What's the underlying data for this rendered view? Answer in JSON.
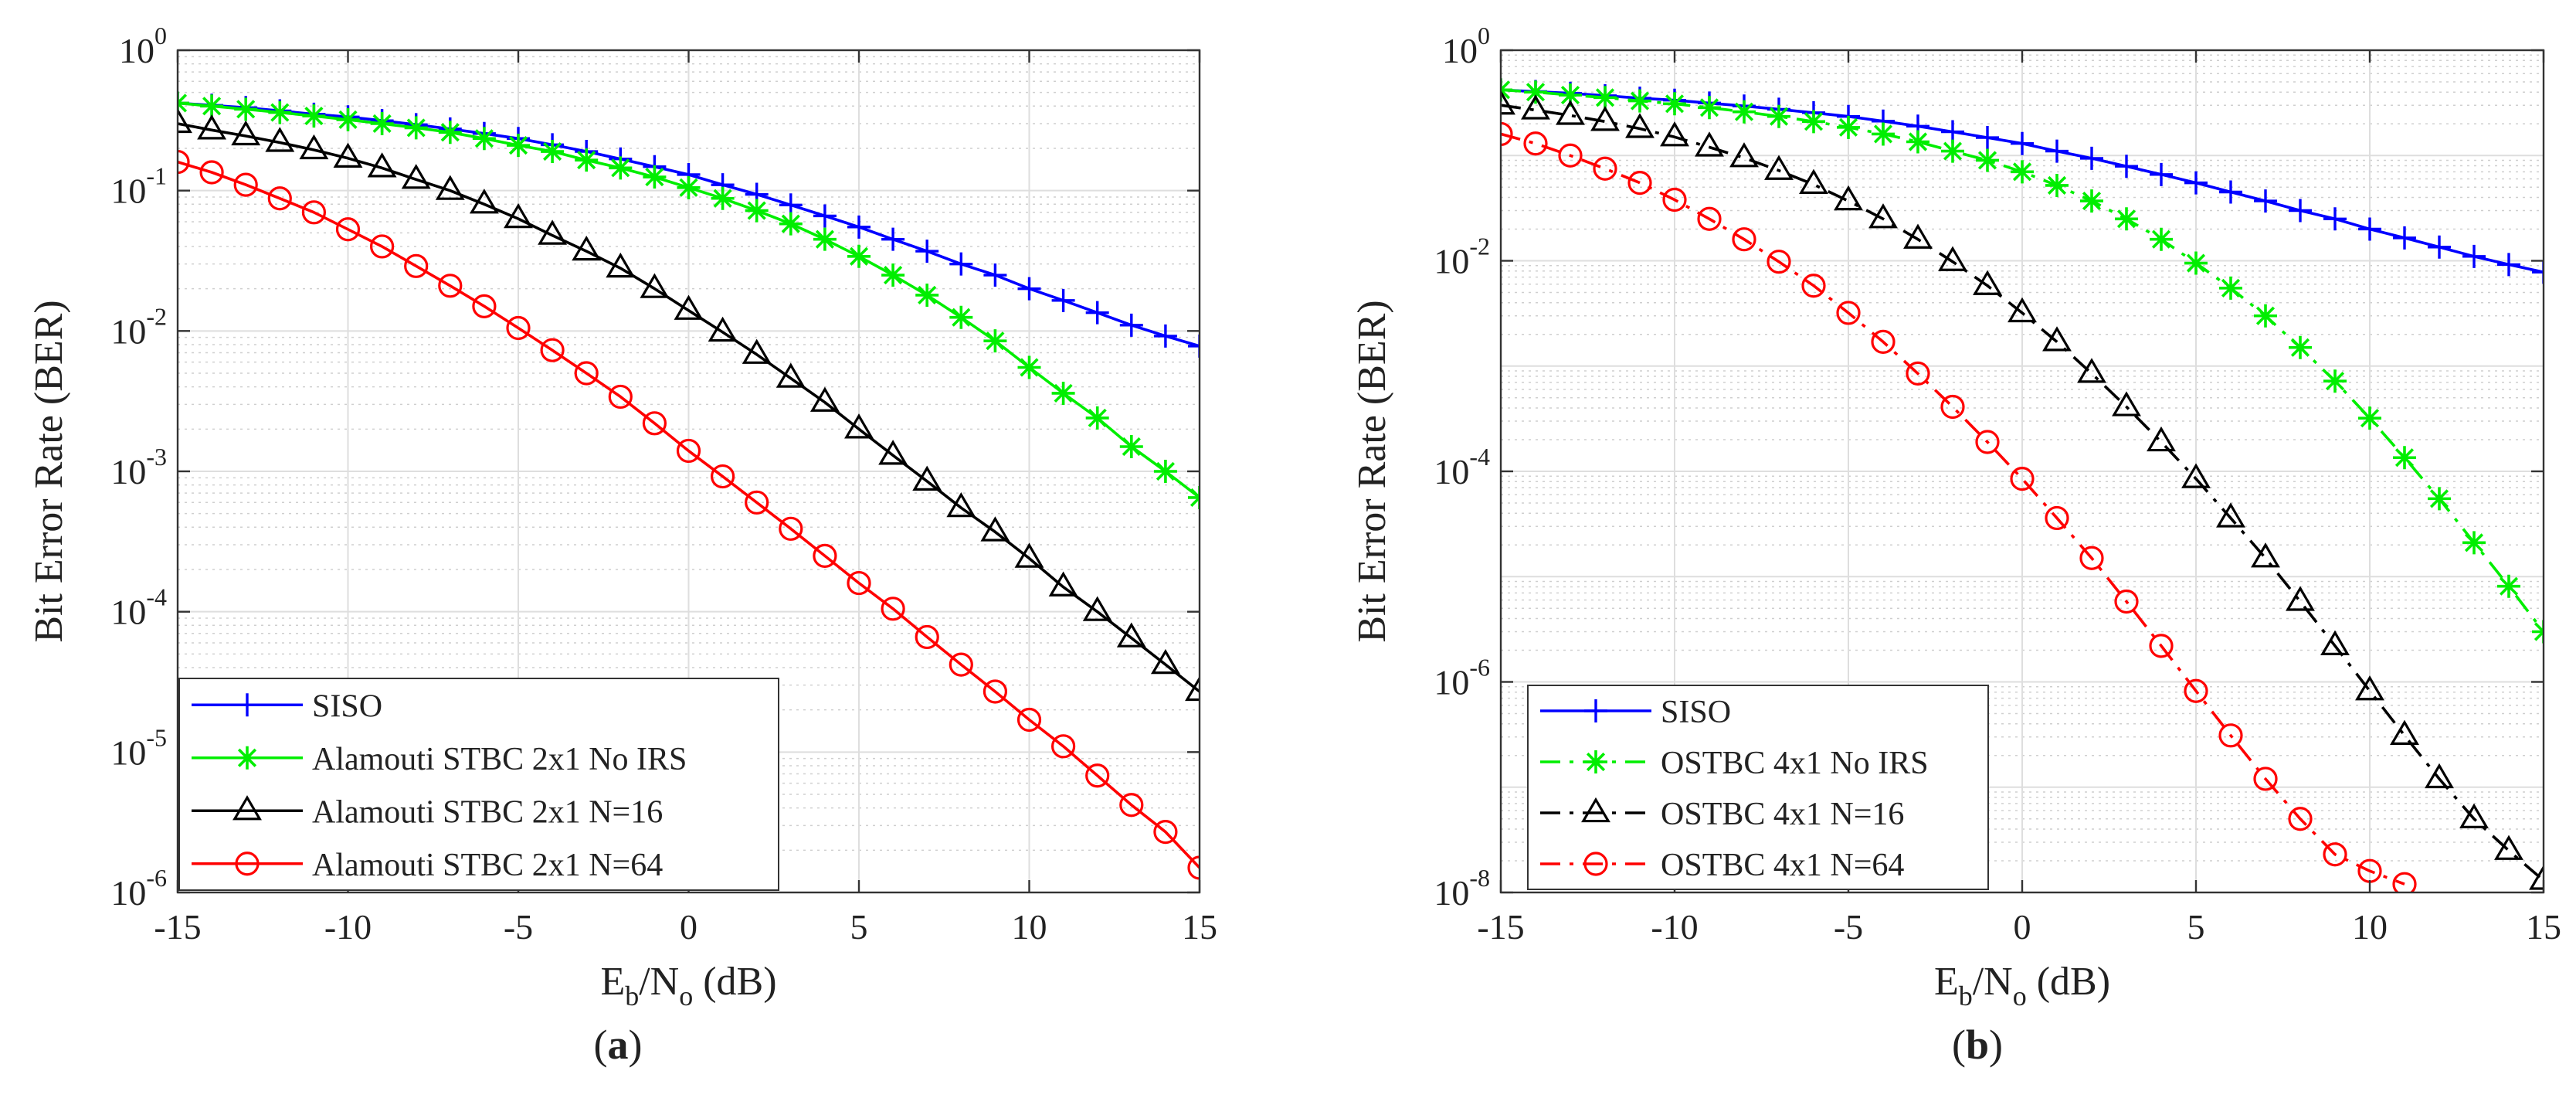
{
  "chart_data": [
    {
      "type": "line",
      "panel_label": "a",
      "xlabel": {
        "base": "E",
        "sub1": "b",
        "mid": "/N",
        "sub2": "o",
        "unit": " (dB)"
      },
      "ylabel": "Bit Error Rate (BER)",
      "xlim": [
        -15,
        15
      ],
      "ylim": [
        1e-06,
        1
      ],
      "yscale": "log",
      "grid": true,
      "legend_position": "bottom-left",
      "xticks": [
        -15,
        -10,
        -5,
        0,
        5,
        10,
        15
      ],
      "xtick_labels": [
        "-15",
        "-10",
        "-5",
        "0",
        "5",
        "10",
        "15"
      ],
      "yticks": [
        {
          "value": 1,
          "base": "10",
          "exp": "0"
        },
        {
          "value": 0.1,
          "base": "10",
          "exp": "-1"
        },
        {
          "value": 0.01,
          "base": "10",
          "exp": "-2"
        },
        {
          "value": 0.001,
          "base": "10",
          "exp": "-3"
        },
        {
          "value": 0.0001,
          "base": "10",
          "exp": "-4"
        },
        {
          "value": 1e-05,
          "base": "10",
          "exp": "-5"
        },
        {
          "value": 1e-06,
          "base": "10",
          "exp": "-6"
        }
      ],
      "series": [
        {
          "name": "SISO",
          "color": "#0000ff",
          "marker": "plus",
          "dash": "solid",
          "x": [
            -15,
            -14,
            -13,
            -12,
            -11,
            -10,
            -9,
            -8,
            -7,
            -6,
            -5,
            -4,
            -3,
            -2,
            -1,
            0,
            1,
            2,
            3,
            4,
            5,
            6,
            7,
            8,
            9,
            10,
            11,
            12,
            13,
            14,
            15
          ],
          "y": [
            0.42,
            0.405,
            0.39,
            0.37,
            0.35,
            0.335,
            0.315,
            0.295,
            0.275,
            0.255,
            0.235,
            0.212,
            0.19,
            0.168,
            0.148,
            0.13,
            0.11,
            0.094,
            0.079,
            0.066,
            0.055,
            0.045,
            0.037,
            0.03,
            0.025,
            0.02,
            0.0165,
            0.0135,
            0.011,
            0.0092,
            0.0078
          ]
        },
        {
          "name": "Alamouti STBC 2x1 No IRS",
          "color": "#00ee00",
          "marker": "asterisk",
          "dash": "solid",
          "x": [
            -15,
            -14,
            -13,
            -12,
            -11,
            -10,
            -9,
            -8,
            -7,
            -6,
            -5,
            -4,
            -3,
            -2,
            -1,
            0,
            1,
            2,
            3,
            4,
            5,
            6,
            7,
            8,
            9,
            10,
            11,
            12,
            13,
            14,
            15
          ],
          "y": [
            0.42,
            0.4,
            0.38,
            0.36,
            0.34,
            0.32,
            0.3,
            0.28,
            0.26,
            0.235,
            0.21,
            0.19,
            0.165,
            0.145,
            0.125,
            0.105,
            0.088,
            0.072,
            0.058,
            0.045,
            0.034,
            0.025,
            0.018,
            0.0125,
            0.0085,
            0.0055,
            0.0036,
            0.0024,
            0.0015,
            0.001,
            0.00065
          ]
        },
        {
          "name": "Alamouti STBC 2x1 N=16",
          "color": "#000000",
          "marker": "triangle",
          "dash": "solid",
          "x": [
            -15,
            -14,
            -13,
            -12,
            -11,
            -10,
            -9,
            -8,
            -7,
            -6,
            -5,
            -4,
            -3,
            -2,
            -1,
            0,
            1,
            2,
            3,
            4,
            5,
            6,
            7,
            8,
            9,
            10,
            11,
            12,
            13,
            14,
            15
          ],
          "y": [
            0.3,
            0.27,
            0.245,
            0.22,
            0.195,
            0.17,
            0.145,
            0.12,
            0.1,
            0.08,
            0.063,
            0.048,
            0.037,
            0.028,
            0.02,
            0.014,
            0.0098,
            0.0068,
            0.0046,
            0.0031,
            0.002,
            0.0013,
            0.00085,
            0.00055,
            0.00037,
            0.00024,
            0.00015,
            0.0001,
            6.5e-05,
            4.2e-05,
            2.7e-05
          ]
        },
        {
          "name": "Alamouti STBC 2x1 N=64",
          "color": "#ff0000",
          "marker": "circle",
          "dash": "solid",
          "x": [
            -15,
            -14,
            -13,
            -12,
            -11,
            -10,
            -9,
            -8,
            -7,
            -6,
            -5,
            -4,
            -3,
            -2,
            -1,
            0,
            1,
            2,
            3,
            4,
            5,
            6,
            7,
            8,
            9,
            10,
            11,
            12,
            13,
            14,
            15
          ],
          "y": [
            0.16,
            0.135,
            0.11,
            0.088,
            0.07,
            0.053,
            0.04,
            0.029,
            0.021,
            0.015,
            0.0105,
            0.0073,
            0.005,
            0.0034,
            0.0022,
            0.0014,
            0.00092,
            0.0006,
            0.00039,
            0.00025,
            0.00016,
            0.000105,
            6.6e-05,
            4.2e-05,
            2.7e-05,
            1.7e-05,
            1.1e-05,
            6.8e-06,
            4.2e-06,
            2.7e-06,
            1.5e-06
          ]
        }
      ]
    },
    {
      "type": "line",
      "panel_label": "b",
      "xlabel": {
        "base": "E",
        "sub1": "b",
        "mid": "/N",
        "sub2": "o",
        "unit": " (dB)"
      },
      "ylabel": "Bit Error Rate (BER)",
      "xlim": [
        -15,
        15
      ],
      "ylim": [
        1e-08,
        1
      ],
      "yscale": "log",
      "grid": true,
      "legend_position": "bottom-left",
      "xticks": [
        -15,
        -10,
        -5,
        0,
        5,
        10,
        15
      ],
      "xtick_labels": [
        "-15",
        "-10",
        "-5",
        "0",
        "5",
        "10",
        "15"
      ],
      "yticks": [
        {
          "value": 1,
          "base": "10",
          "exp": "0"
        },
        {
          "value": 0.01,
          "base": "10",
          "exp": "-2"
        },
        {
          "value": 0.0001,
          "base": "10",
          "exp": "-4"
        },
        {
          "value": 1e-06,
          "base": "10",
          "exp": "-6"
        },
        {
          "value": 1e-08,
          "base": "10",
          "exp": "-8"
        }
      ],
      "series": [
        {
          "name": "SISO",
          "color": "#0000ff",
          "marker": "plus",
          "dash": "solid",
          "x": [
            -15,
            -14,
            -13,
            -12,
            -11,
            -10,
            -9,
            -8,
            -7,
            -6,
            -5,
            -4,
            -3,
            -2,
            -1,
            0,
            1,
            2,
            3,
            4,
            5,
            6,
            7,
            8,
            9,
            10,
            11,
            12,
            13,
            14,
            15
          ],
          "y": [
            0.42,
            0.405,
            0.39,
            0.37,
            0.35,
            0.335,
            0.315,
            0.295,
            0.275,
            0.255,
            0.235,
            0.212,
            0.19,
            0.168,
            0.148,
            0.13,
            0.11,
            0.094,
            0.079,
            0.066,
            0.055,
            0.045,
            0.037,
            0.03,
            0.025,
            0.02,
            0.0165,
            0.0135,
            0.011,
            0.0092,
            0.0078
          ]
        },
        {
          "name": "OSTBC 4x1 No IRS",
          "color": "#00ee00",
          "marker": "asterisk",
          "dash": "dashdot",
          "x": [
            -15,
            -14,
            -13,
            -12,
            -11,
            -10,
            -9,
            -8,
            -7,
            -6,
            -5,
            -4,
            -3,
            -2,
            -1,
            0,
            1,
            2,
            3,
            4,
            5,
            6,
            7,
            8,
            9,
            10,
            11,
            12,
            13,
            14,
            15
          ],
          "y": [
            0.42,
            0.4,
            0.375,
            0.355,
            0.33,
            0.31,
            0.285,
            0.26,
            0.235,
            0.21,
            0.185,
            0.16,
            0.135,
            0.11,
            0.09,
            0.07,
            0.052,
            0.037,
            0.025,
            0.016,
            0.0095,
            0.0055,
            0.003,
            0.0015,
            0.00072,
            0.00032,
            0.000135,
            5.5e-05,
            2.1e-05,
            8.1e-06,
            3e-06
          ]
        },
        {
          "name": "OSTBC 4x1 N=16",
          "color": "#000000",
          "marker": "triangle",
          "dash": "dashdot",
          "x": [
            -15,
            -14,
            -13,
            -12,
            -11,
            -10,
            -9,
            -8,
            -7,
            -6,
            -5,
            -4,
            -3,
            -2,
            -1,
            0,
            1,
            2,
            3,
            4,
            5,
            6,
            7,
            8,
            9,
            10,
            11,
            12,
            13,
            14,
            15
          ],
          "y": [
            0.3,
            0.27,
            0.24,
            0.21,
            0.18,
            0.15,
            0.12,
            0.095,
            0.072,
            0.053,
            0.037,
            0.025,
            0.016,
            0.0098,
            0.0058,
            0.0032,
            0.0017,
            0.00085,
            0.00041,
            0.00019,
            8.5e-05,
            3.6e-05,
            1.5e-05,
            5.8e-06,
            2.2e-06,
            8.2e-07,
            3.1e-07,
            1.2e-07,
            5e-08,
            2.5e-08,
            1.3e-08
          ]
        },
        {
          "name": "OSTBC 4x1 N=64",
          "color": "#ff0000",
          "marker": "circle",
          "dash": "dashdot",
          "x": [
            -15,
            -14,
            -13,
            -12,
            -11,
            -10,
            -9,
            -8,
            -7,
            -6,
            -5,
            -4,
            -3,
            -2,
            -1,
            0,
            1,
            2,
            3,
            4,
            5,
            6,
            7,
            8,
            9,
            10,
            11
          ],
          "y": [
            0.16,
            0.13,
            0.1,
            0.075,
            0.055,
            0.038,
            0.025,
            0.016,
            0.0098,
            0.0058,
            0.0032,
            0.0017,
            0.00085,
            0.00041,
            0.00019,
            8.5e-05,
            3.6e-05,
            1.5e-05,
            5.8e-06,
            2.2e-06,
            8.2e-07,
            3.1e-07,
            1.2e-07,
            5e-08,
            2.3e-08,
            1.6e-08,
            1.2e-08
          ]
        }
      ]
    }
  ]
}
